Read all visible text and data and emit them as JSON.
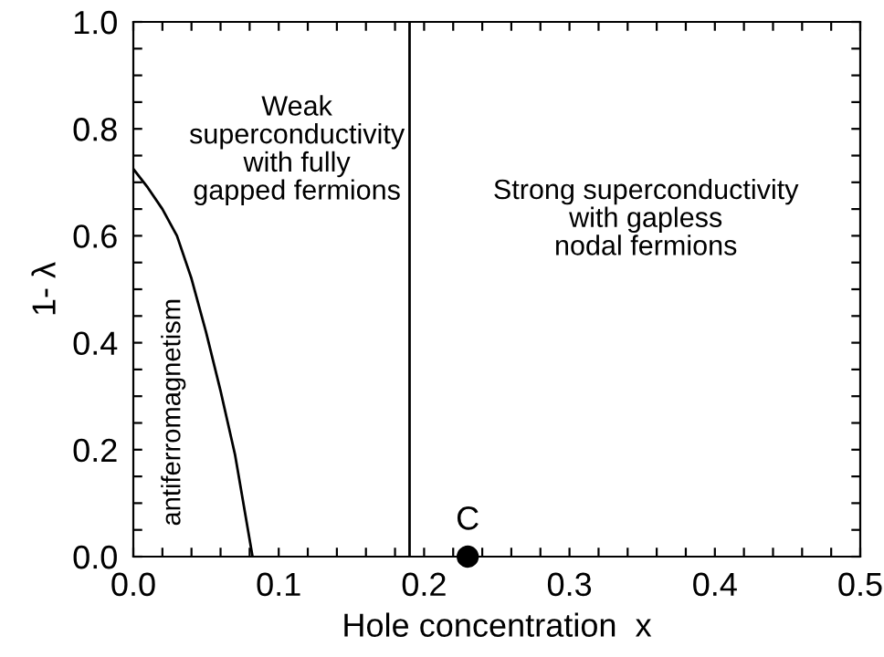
{
  "chart_data": {
    "type": "line",
    "xlabel": "Hole concentration  x",
    "ylabel": "1- λ",
    "xlim": [
      0,
      0.5
    ],
    "ylim": [
      0,
      1
    ],
    "xticks": [
      {
        "value": 0,
        "label": "0.0"
      },
      {
        "value": 0.02,
        "label": null
      },
      {
        "value": 0.04,
        "label": null
      },
      {
        "value": 0.06,
        "label": null
      },
      {
        "value": 0.08,
        "label": null
      },
      {
        "value": 0.1,
        "label": "0.1"
      },
      {
        "value": 0.12,
        "label": null
      },
      {
        "value": 0.14,
        "label": null
      },
      {
        "value": 0.16,
        "label": null
      },
      {
        "value": 0.18,
        "label": null
      },
      {
        "value": 0.2,
        "label": "0.2"
      },
      {
        "value": 0.22,
        "label": null
      },
      {
        "value": 0.24,
        "label": null
      },
      {
        "value": 0.26,
        "label": null
      },
      {
        "value": 0.28,
        "label": null
      },
      {
        "value": 0.3,
        "label": "0.3"
      },
      {
        "value": 0.32,
        "label": null
      },
      {
        "value": 0.34,
        "label": null
      },
      {
        "value": 0.36,
        "label": null
      },
      {
        "value": 0.38,
        "label": null
      },
      {
        "value": 0.4,
        "label": "0.4"
      },
      {
        "value": 0.42,
        "label": null
      },
      {
        "value": 0.44,
        "label": null
      },
      {
        "value": 0.46,
        "label": null
      },
      {
        "value": 0.48,
        "label": null
      },
      {
        "value": 0.5,
        "label": "0.5"
      }
    ],
    "yticks": [
      {
        "value": 0,
        "label": "0.0"
      },
      {
        "value": 0.05,
        "label": null
      },
      {
        "value": 0.1,
        "label": null
      },
      {
        "value": 0.15,
        "label": null
      },
      {
        "value": 0.2,
        "label": "0.2"
      },
      {
        "value": 0.25,
        "label": null
      },
      {
        "value": 0.3,
        "label": null
      },
      {
        "value": 0.35,
        "label": null
      },
      {
        "value": 0.4,
        "label": "0.4"
      },
      {
        "value": 0.45,
        "label": null
      },
      {
        "value": 0.5,
        "label": null
      },
      {
        "value": 0.55,
        "label": null
      },
      {
        "value": 0.6,
        "label": "0.6"
      },
      {
        "value": 0.65,
        "label": null
      },
      {
        "value": 0.7,
        "label": null
      },
      {
        "value": 0.75,
        "label": null
      },
      {
        "value": 0.8,
        "label": "0.8"
      },
      {
        "value": 0.85,
        "label": null
      },
      {
        "value": 0.9,
        "label": null
      },
      {
        "value": 0.95,
        "label": null
      },
      {
        "value": 1.0,
        "label": "1.0"
      }
    ],
    "grid": false,
    "series": [
      {
        "color": "#000000",
        "marker": "none",
        "line_style": "solid",
        "x": [
          0,
          0.01,
          0.02,
          0.03,
          0.04,
          0.05,
          0.06,
          0.07,
          0.082
        ],
        "values": [
          0.725,
          0.69,
          0.65,
          0.6,
          0.52,
          0.42,
          0.31,
          0.19,
          0
        ]
      },
      {
        "type": "scatter",
        "color": "#000000",
        "marker": "circle",
        "x": [
          0.23
        ],
        "values": [
          0
        ]
      }
    ],
    "ref_lines": [
      {
        "axis": "x",
        "value": 0.19,
        "color": "#000000",
        "line_style": "solid"
      }
    ],
    "annotations": [
      "Weak\nsuperconductivity\nwith fully\ngapped fermions",
      "Strong superconductivity\nwith gapless\nnodal fermions",
      "antiferromagnetism",
      {
        "text": "C",
        "x": 0.23,
        "y": 0
      }
    ]
  }
}
